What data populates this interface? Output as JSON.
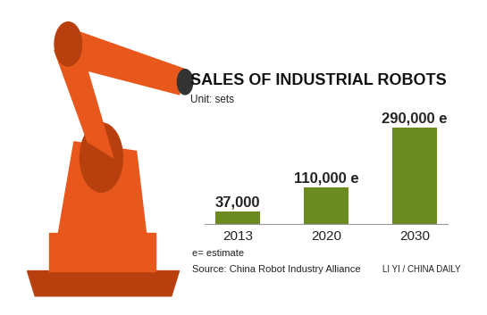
{
  "chart_data": {
    "type": "bar",
    "title": "SALES OF INDUSTRIAL ROBOTS",
    "subtitle": "Unit: sets",
    "categories": [
      "2013",
      "2020",
      "2030"
    ],
    "values": [
      37000,
      110000,
      290000
    ],
    "value_labels": [
      "37,000",
      "110,000 e",
      "290,000 e"
    ],
    "color": "#6b8b21",
    "data_labels": true,
    "tick_labels": "x",
    "grid": false,
    "annotations": [
      "e= estimate",
      "Source: China Robot Industry Alliance",
      "LI YI / CHINA DAILY"
    ]
  }
}
